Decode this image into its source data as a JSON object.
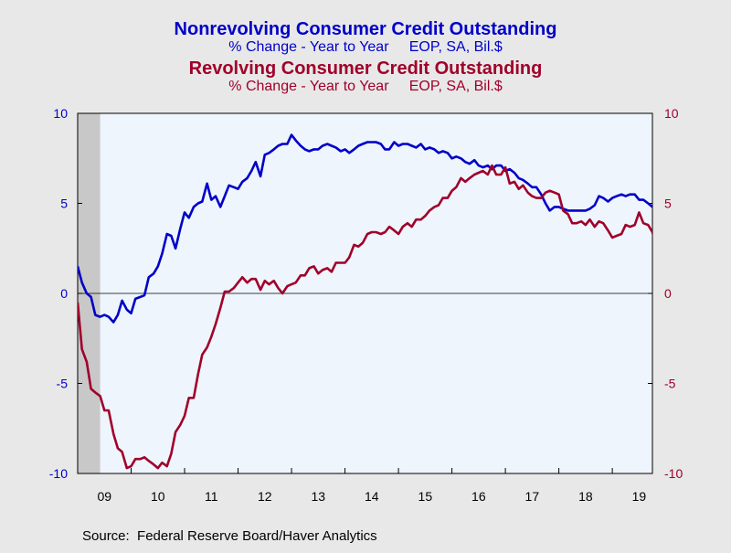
{
  "colors": {
    "nonrevolving": "#0000c8",
    "revolving": "#a0002a",
    "plot_bg": "#eef5fc",
    "page_bg": "#e8e8e8",
    "recession": "#c8c8c8"
  },
  "chart_data": {
    "type": "line",
    "titles": [
      {
        "text": "Nonrevolving Consumer Credit Outstanding",
        "color": "#0000c8"
      },
      {
        "text": "% Change - Year to Year     EOP, SA, Bil.$",
        "color": "#0000c8"
      },
      {
        "text": "Revolving Consumer Credit Outstanding",
        "color": "#a0002a"
      },
      {
        "text": "% Change - Year to Year     EOP, SA, Bil.$",
        "color": "#a0002a"
      }
    ],
    "source": "Source:  Federal Reserve Board/Haver Analytics",
    "x_range": [
      2009.0,
      2019.75
    ],
    "x_tick_labels": [
      {
        "label": "09",
        "x": 2009.5
      },
      {
        "label": "10",
        "x": 2010.5
      },
      {
        "label": "11",
        "x": 2011.5
      },
      {
        "label": "12",
        "x": 2012.5
      },
      {
        "label": "13",
        "x": 2013.5
      },
      {
        "label": "14",
        "x": 2014.5
      },
      {
        "label": "15",
        "x": 2015.5
      },
      {
        "label": "16",
        "x": 2016.5
      },
      {
        "label": "17",
        "x": 2017.5
      },
      {
        "label": "18",
        "x": 2018.5
      },
      {
        "label": "19",
        "x": 2019.5
      }
    ],
    "y_left": {
      "range": [
        -10,
        10
      ],
      "ticks": [
        10,
        5,
        0,
        -5,
        -10
      ],
      "color": "#0000c8"
    },
    "y_right": {
      "range": [
        -10,
        10
      ],
      "ticks": [
        10,
        5,
        0,
        -5,
        -10
      ],
      "color": "#a0002a"
    },
    "recession_shading": {
      "from": 2009.0,
      "to": 2009.42
    },
    "zero_line": true,
    "series": [
      {
        "name": "Nonrevolving Consumer Credit Outstanding",
        "color": "#0000c8",
        "axis": "left",
        "points": [
          [
            2009.0,
            1.5
          ],
          [
            2009.08,
            0.6
          ],
          [
            2009.17,
            0.0
          ],
          [
            2009.25,
            -0.2
          ],
          [
            2009.33,
            -1.2
          ],
          [
            2009.42,
            -1.3
          ],
          [
            2009.5,
            -1.2
          ],
          [
            2009.58,
            -1.3
          ],
          [
            2009.67,
            -1.6
          ],
          [
            2009.75,
            -1.2
          ],
          [
            2009.83,
            -0.4
          ],
          [
            2009.92,
            -0.9
          ],
          [
            2010.0,
            -1.1
          ],
          [
            2010.08,
            -0.3
          ],
          [
            2010.17,
            -0.2
          ],
          [
            2010.25,
            -0.1
          ],
          [
            2010.33,
            0.9
          ],
          [
            2010.42,
            1.1
          ],
          [
            2010.5,
            1.5
          ],
          [
            2010.58,
            2.2
          ],
          [
            2010.67,
            3.3
          ],
          [
            2010.75,
            3.2
          ],
          [
            2010.83,
            2.5
          ],
          [
            2010.92,
            3.6
          ],
          [
            2011.0,
            4.5
          ],
          [
            2011.08,
            4.2
          ],
          [
            2011.17,
            4.8
          ],
          [
            2011.25,
            5.0
          ],
          [
            2011.33,
            5.1
          ],
          [
            2011.42,
            6.1
          ],
          [
            2011.5,
            5.2
          ],
          [
            2011.58,
            5.4
          ],
          [
            2011.67,
            4.8
          ],
          [
            2011.75,
            5.4
          ],
          [
            2011.83,
            6.0
          ],
          [
            2011.92,
            5.9
          ],
          [
            2012.0,
            5.8
          ],
          [
            2012.08,
            6.2
          ],
          [
            2012.17,
            6.4
          ],
          [
            2012.25,
            6.8
          ],
          [
            2012.33,
            7.3
          ],
          [
            2012.42,
            6.5
          ],
          [
            2012.5,
            7.7
          ],
          [
            2012.58,
            7.8
          ],
          [
            2012.67,
            8.0
          ],
          [
            2012.75,
            8.2
          ],
          [
            2012.83,
            8.3
          ],
          [
            2012.92,
            8.3
          ],
          [
            2013.0,
            8.8
          ],
          [
            2013.08,
            8.5
          ],
          [
            2013.17,
            8.2
          ],
          [
            2013.25,
            8.0
          ],
          [
            2013.33,
            7.9
          ],
          [
            2013.42,
            8.0
          ],
          [
            2013.5,
            8.0
          ],
          [
            2013.58,
            8.2
          ],
          [
            2013.67,
            8.3
          ],
          [
            2013.75,
            8.2
          ],
          [
            2013.83,
            8.1
          ],
          [
            2013.92,
            7.9
          ],
          [
            2014.0,
            8.0
          ],
          [
            2014.08,
            7.8
          ],
          [
            2014.17,
            8.0
          ],
          [
            2014.25,
            8.2
          ],
          [
            2014.33,
            8.3
          ],
          [
            2014.42,
            8.4
          ],
          [
            2014.5,
            8.4
          ],
          [
            2014.58,
            8.4
          ],
          [
            2014.67,
            8.3
          ],
          [
            2014.75,
            8.0
          ],
          [
            2014.83,
            8.0
          ],
          [
            2014.92,
            8.4
          ],
          [
            2015.0,
            8.2
          ],
          [
            2015.08,
            8.3
          ],
          [
            2015.17,
            8.3
          ],
          [
            2015.25,
            8.2
          ],
          [
            2015.33,
            8.1
          ],
          [
            2015.42,
            8.3
          ],
          [
            2015.5,
            8.0
          ],
          [
            2015.58,
            8.1
          ],
          [
            2015.67,
            8.0
          ],
          [
            2015.75,
            7.8
          ],
          [
            2015.83,
            7.9
          ],
          [
            2015.92,
            7.8
          ],
          [
            2016.0,
            7.5
          ],
          [
            2016.08,
            7.6
          ],
          [
            2016.17,
            7.5
          ],
          [
            2016.25,
            7.3
          ],
          [
            2016.33,
            7.2
          ],
          [
            2016.42,
            7.4
          ],
          [
            2016.5,
            7.1
          ],
          [
            2016.58,
            7.0
          ],
          [
            2016.67,
            7.1
          ],
          [
            2016.75,
            6.9
          ],
          [
            2016.83,
            7.1
          ],
          [
            2016.92,
            7.1
          ],
          [
            2017.0,
            6.8
          ],
          [
            2017.08,
            6.9
          ],
          [
            2017.17,
            6.7
          ],
          [
            2017.25,
            6.4
          ],
          [
            2017.33,
            6.3
          ],
          [
            2017.42,
            6.1
          ],
          [
            2017.5,
            5.9
          ],
          [
            2017.58,
            5.9
          ],
          [
            2017.67,
            5.5
          ],
          [
            2017.75,
            5.0
          ],
          [
            2017.83,
            4.6
          ],
          [
            2017.92,
            4.8
          ],
          [
            2018.0,
            4.8
          ],
          [
            2018.08,
            4.7
          ],
          [
            2018.17,
            4.6
          ],
          [
            2018.25,
            4.6
          ],
          [
            2018.33,
            4.6
          ],
          [
            2018.42,
            4.6
          ],
          [
            2018.5,
            4.6
          ],
          [
            2018.58,
            4.7
          ],
          [
            2018.67,
            4.9
          ],
          [
            2018.75,
            5.4
          ],
          [
            2018.83,
            5.3
          ],
          [
            2018.92,
            5.1
          ],
          [
            2019.0,
            5.3
          ],
          [
            2019.08,
            5.4
          ],
          [
            2019.17,
            5.5
          ],
          [
            2019.25,
            5.4
          ],
          [
            2019.33,
            5.5
          ],
          [
            2019.42,
            5.5
          ],
          [
            2019.5,
            5.2
          ],
          [
            2019.58,
            5.2
          ],
          [
            2019.67,
            5.0
          ],
          [
            2019.75,
            4.8
          ],
          [
            2019.83,
            4.8
          ]
        ]
      },
      {
        "name": "Revolving Consumer Credit Outstanding",
        "color": "#a0002a",
        "axis": "right",
        "points": [
          [
            2009.0,
            -0.5
          ],
          [
            2009.08,
            -3.1
          ],
          [
            2009.17,
            -3.8
          ],
          [
            2009.25,
            -5.3
          ],
          [
            2009.33,
            -5.5
          ],
          [
            2009.42,
            -5.7
          ],
          [
            2009.5,
            -6.5
          ],
          [
            2009.58,
            -6.5
          ],
          [
            2009.67,
            -7.8
          ],
          [
            2009.75,
            -8.6
          ],
          [
            2009.83,
            -8.8
          ],
          [
            2009.92,
            -9.7
          ],
          [
            2010.0,
            -9.6
          ],
          [
            2010.08,
            -9.2
          ],
          [
            2010.17,
            -9.2
          ],
          [
            2010.25,
            -9.1
          ],
          [
            2010.33,
            -9.3
          ],
          [
            2010.42,
            -9.5
          ],
          [
            2010.5,
            -9.7
          ],
          [
            2010.58,
            -9.4
          ],
          [
            2010.67,
            -9.6
          ],
          [
            2010.75,
            -8.9
          ],
          [
            2010.83,
            -7.7
          ],
          [
            2010.92,
            -7.3
          ],
          [
            2011.0,
            -6.8
          ],
          [
            2011.08,
            -5.8
          ],
          [
            2011.17,
            -5.8
          ],
          [
            2011.25,
            -4.5
          ],
          [
            2011.33,
            -3.4
          ],
          [
            2011.42,
            -3.0
          ],
          [
            2011.5,
            -2.4
          ],
          [
            2011.58,
            -1.7
          ],
          [
            2011.67,
            -0.8
          ],
          [
            2011.75,
            0.1
          ],
          [
            2011.83,
            0.1
          ],
          [
            2011.92,
            0.3
          ],
          [
            2012.0,
            0.6
          ],
          [
            2012.08,
            0.9
          ],
          [
            2012.17,
            0.6
          ],
          [
            2012.25,
            0.8
          ],
          [
            2012.33,
            0.8
          ],
          [
            2012.42,
            0.2
          ],
          [
            2012.5,
            0.7
          ],
          [
            2012.58,
            0.5
          ],
          [
            2012.67,
            0.7
          ],
          [
            2012.75,
            0.3
          ],
          [
            2012.83,
            0.0
          ],
          [
            2012.92,
            0.4
          ],
          [
            2013.0,
            0.5
          ],
          [
            2013.08,
            0.6
          ],
          [
            2013.17,
            1.0
          ],
          [
            2013.25,
            1.0
          ],
          [
            2013.33,
            1.4
          ],
          [
            2013.42,
            1.5
          ],
          [
            2013.5,
            1.1
          ],
          [
            2013.58,
            1.3
          ],
          [
            2013.67,
            1.4
          ],
          [
            2013.75,
            1.2
          ],
          [
            2013.83,
            1.7
          ],
          [
            2013.92,
            1.7
          ],
          [
            2014.0,
            1.7
          ],
          [
            2014.08,
            2.0
          ],
          [
            2014.17,
            2.7
          ],
          [
            2014.25,
            2.6
          ],
          [
            2014.33,
            2.8
          ],
          [
            2014.42,
            3.3
          ],
          [
            2014.5,
            3.4
          ],
          [
            2014.58,
            3.4
          ],
          [
            2014.67,
            3.3
          ],
          [
            2014.75,
            3.4
          ],
          [
            2014.83,
            3.7
          ],
          [
            2014.92,
            3.5
          ],
          [
            2015.0,
            3.3
          ],
          [
            2015.08,
            3.7
          ],
          [
            2015.17,
            3.9
          ],
          [
            2015.25,
            3.7
          ],
          [
            2015.33,
            4.1
          ],
          [
            2015.42,
            4.1
          ],
          [
            2015.5,
            4.3
          ],
          [
            2015.58,
            4.6
          ],
          [
            2015.67,
            4.8
          ],
          [
            2015.75,
            4.9
          ],
          [
            2015.83,
            5.3
          ],
          [
            2015.92,
            5.3
          ],
          [
            2016.0,
            5.7
          ],
          [
            2016.08,
            5.9
          ],
          [
            2016.17,
            6.4
          ],
          [
            2016.25,
            6.2
          ],
          [
            2016.33,
            6.4
          ],
          [
            2016.42,
            6.6
          ],
          [
            2016.5,
            6.7
          ],
          [
            2016.58,
            6.8
          ],
          [
            2016.67,
            6.6
          ],
          [
            2016.75,
            7.1
          ],
          [
            2016.83,
            6.6
          ],
          [
            2016.92,
            6.6
          ],
          [
            2017.0,
            7.0
          ],
          [
            2017.08,
            6.1
          ],
          [
            2017.17,
            6.2
          ],
          [
            2017.25,
            5.8
          ],
          [
            2017.33,
            6.0
          ],
          [
            2017.42,
            5.6
          ],
          [
            2017.5,
            5.4
          ],
          [
            2017.58,
            5.3
          ],
          [
            2017.67,
            5.3
          ],
          [
            2017.75,
            5.6
          ],
          [
            2017.83,
            5.7
          ],
          [
            2017.92,
            5.6
          ],
          [
            2018.0,
            5.5
          ],
          [
            2018.08,
            4.6
          ],
          [
            2018.17,
            4.4
          ],
          [
            2018.25,
            3.9
          ],
          [
            2018.33,
            3.9
          ],
          [
            2018.42,
            4.0
          ],
          [
            2018.5,
            3.8
          ],
          [
            2018.58,
            4.1
          ],
          [
            2018.67,
            3.7
          ],
          [
            2018.75,
            4.0
          ],
          [
            2018.83,
            3.9
          ],
          [
            2018.92,
            3.5
          ],
          [
            2019.0,
            3.1
          ],
          [
            2019.08,
            3.2
          ],
          [
            2019.17,
            3.3
          ],
          [
            2019.25,
            3.8
          ],
          [
            2019.33,
            3.7
          ],
          [
            2019.42,
            3.8
          ],
          [
            2019.5,
            4.5
          ],
          [
            2019.58,
            3.9
          ],
          [
            2019.67,
            3.8
          ],
          [
            2019.75,
            3.4
          ],
          [
            2019.83,
            2.4
          ],
          [
            2019.92,
            3.7
          ],
          [
            2020.0,
            3.1
          ]
        ]
      }
    ]
  }
}
